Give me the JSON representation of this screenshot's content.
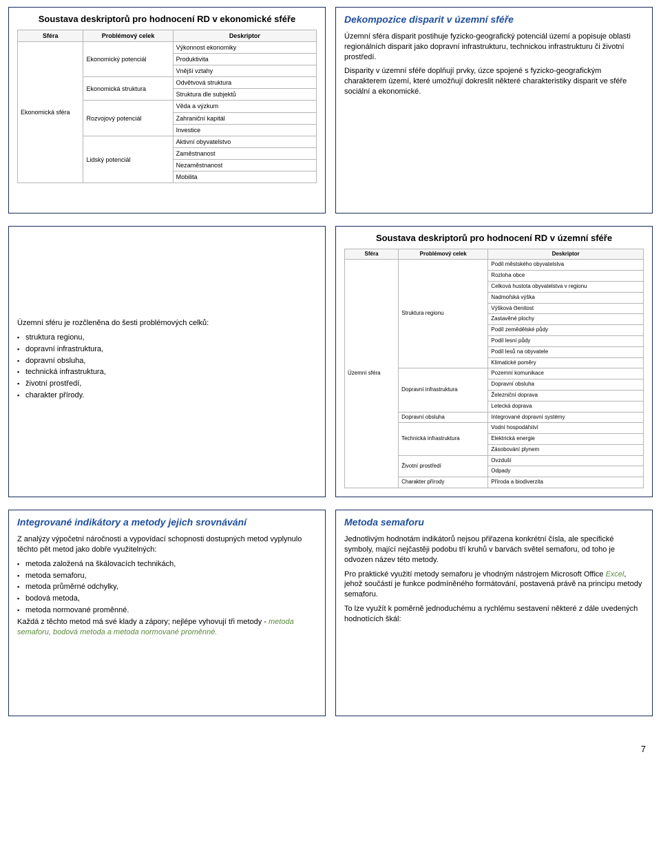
{
  "page_number": "7",
  "slide1": {
    "title": "Soustava deskriptorů pro hodnocení RD v ekonomické sféře",
    "table": {
      "headers": [
        "Sféra",
        "Problémový celek",
        "Deskriptor"
      ],
      "col1": "Ekonomická sféra",
      "groups": [
        {
          "celek": "Ekonomický potenciál",
          "rows": [
            "Výkonnost ekonomiky",
            "Produktivita",
            "Vnější vztahy"
          ]
        },
        {
          "celek": "Ekonomická struktura",
          "rows": [
            "Odvětvová struktura",
            "Struktura dle subjektů"
          ]
        },
        {
          "celek": "Rozvojový potenciál",
          "rows": [
            "Věda a výzkum",
            "Zahraniční kapitál",
            "Investice"
          ]
        },
        {
          "celek": "Lidský potenciál",
          "rows": [
            "Aktivní obyvatelstvo",
            "Zaměstnanost",
            "Nezaměstnanost",
            "Mobilita"
          ]
        }
      ]
    }
  },
  "slide2": {
    "title": "Dekompozice disparit v územní sféře",
    "p1": "Územní sféra disparit postihuje fyzicko-geografický potenciál území a popisuje oblasti regionálních disparit jako dopravní infrastrukturu, technickou infrastrukturu či životní prostředí.",
    "p2": "Disparity v územní sféře doplňují prvky, úzce spojené s fyzicko-geografickým charakterem území, které umožňují dokreslit některé charakteristiky disparit ve sféře sociální a ekonomické."
  },
  "slide3": {
    "intro": "Územní sféru je rozčleněna do šesti problémových celků:",
    "items": [
      "struktura regionu,",
      "dopravní infrastruktura,",
      "dopravní obsluha,",
      "technická infrastruktura,",
      "životní prostředí,",
      "charakter přírody."
    ]
  },
  "slide4": {
    "title": "Soustava deskriptorů pro hodnocení RD v územní sféře",
    "table": {
      "headers": [
        "Sféra",
        "Problémový celek",
        "Deskriptor"
      ],
      "col1": "Územní sféra",
      "groups": [
        {
          "celek": "Struktura regionu",
          "rows": [
            "Podíl městského obyvatelstva",
            "Rozloha obce",
            "Celková hustota obyvatelstva v regionu",
            "Nadmořská výška",
            "Výšková členitost",
            "Zastavěné plochy",
            "Podíl zemědělské půdy",
            "Podíl lesní půdy",
            "Podíl lesů na obyvatele",
            "Klimatické poměry"
          ]
        },
        {
          "celek": "Dopravní infrastruktura",
          "rows": [
            "Pozemní komunikace",
            "Dopravní obsluha",
            "Železniční doprava",
            "Letecká doprava"
          ]
        },
        {
          "celek": "Dopravní obsluha",
          "rows": [
            "Integrované dopravní systémy"
          ]
        },
        {
          "celek": "Technická infrastruktura",
          "rows": [
            "Vodní hospodářství",
            "Elektrická energie",
            "Zásobování plynem"
          ]
        },
        {
          "celek": "Životní prostředí",
          "rows": [
            "Ovzduší",
            "Odpady"
          ]
        },
        {
          "celek": "Charakter přírody",
          "rows": [
            "Příroda a biodiverzita"
          ]
        }
      ]
    }
  },
  "slide5": {
    "title": "Integrované indikátory a metody jejich srovnávání",
    "p1": "Z analýzy výpočetní náročnosti a vypovídací schopnosti dostupných metod vyplynulo těchto pět metod jako dobře využitelných:",
    "items": [
      "metoda založená na škálovacích technikách,",
      "metoda semaforu,",
      "metoda průměrné odchylky,",
      "bodová metoda,",
      "metoda normované proměnné."
    ],
    "p2_a": "Každá z těchto metod má své klady a zápory; nejlépe vyhovují tři metody - ",
    "p2_b": "metoda semaforu, bodová metoda a metoda normované proměnné."
  },
  "slide6": {
    "title": "Metoda semaforu",
    "p1": "Jednotlivým hodnotám indikátorů nejsou přiřazena konkrétní čísla, ale specifické symboly, mající nejčastěji podobu tří kruhů v barvách světel semaforu, od toho je odvozen název této metody.",
    "p2_a": "Pro praktické využití metody semaforu je vhodným nástrojem Microsoft Office ",
    "p2_excel": "Excel",
    "p2_b": ", jehož součástí je funkce podmíněného formátování, postavená právě na principu metody semaforu.",
    "p3": "To lze využít k poměrně jednoduchému a rychlému sestavení některé z dále uvedených hodnotících škál:"
  }
}
